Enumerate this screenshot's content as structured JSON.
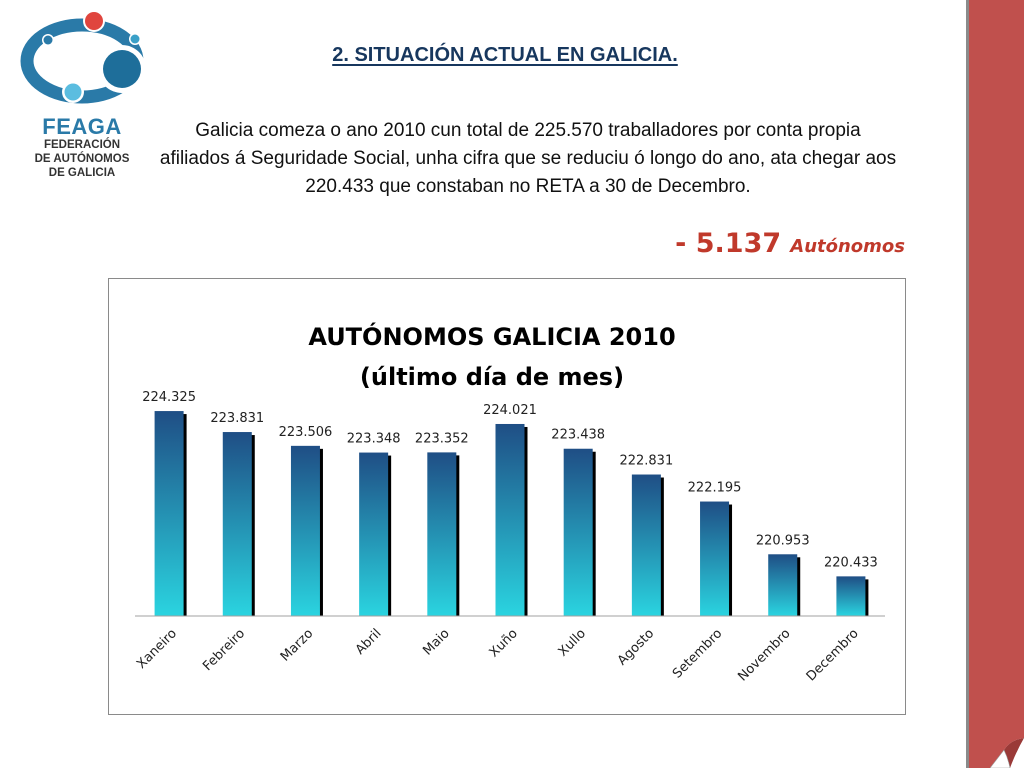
{
  "logo": {
    "name": "FEAGA",
    "line1": "FEDERACIÓN",
    "line2": "DE AUTÓNOMOS",
    "line3": "DE GALICIA"
  },
  "slide": {
    "title": "2. SITUACIÓN ACTUAL EN GALICIA.",
    "intro": "Galicia comeza o ano 2010 cun total de 225.570   traballadores por conta propia afiliados á Seguridade Social, unha cifra que se reduciu ó longo do ano, ata chegar aos 220.433 que constaban no RETA a 30 de Decembro.",
    "delta_value": "- 5.137",
    "delta_unit": "Autónomos"
  },
  "colors": {
    "title": "#17375e",
    "delta": "#c0392b",
    "band": "#c0504d",
    "bar_top": "#1f4e85",
    "bar_bottom": "#2ad4e0"
  },
  "chart_data": {
    "type": "bar",
    "title": "AUTÓNOMOS GALICIA 2010",
    "subtitle": "(último día de mes)",
    "categories": [
      "Xaneiro",
      "Febreiro",
      "Marzo",
      "Abril",
      "Maio",
      "Xuño",
      "Xullo",
      "Agosto",
      "Setembro",
      "Novembro",
      "Decembro"
    ],
    "values": [
      224325,
      223831,
      223506,
      223348,
      223352,
      224021,
      223438,
      222831,
      222195,
      220953,
      220433
    ],
    "labels": [
      "224.325",
      "223.831",
      "223.506",
      "223.348",
      "223.352",
      "224.021",
      "223.438",
      "222.831",
      "222.195",
      "220.953",
      "220.433"
    ],
    "ylim": [
      219500,
      224350
    ],
    "grid": false,
    "legend": "none",
    "xlabel": "",
    "ylabel": ""
  }
}
